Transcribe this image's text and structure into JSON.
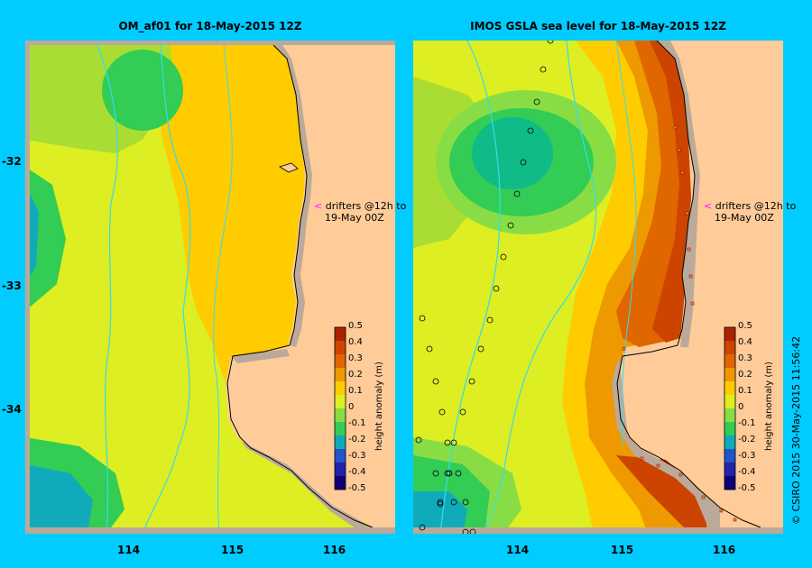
{
  "panels": [
    {
      "title": "OM_af01  for 18-May-2015 12Z"
    },
    {
      "title": "IMOS GSLA sea level  for 18-May-2015 12Z"
    }
  ],
  "y_ticks": [
    "-32",
    "-33",
    "-34"
  ],
  "x_ticks": [
    "114",
    "115",
    "116"
  ],
  "annotation": {
    "line1": "drifters @12h to",
    "line2": "19-May 00Z"
  },
  "colorbar": {
    "label": "height anomaly (m)",
    "ticks": [
      "0.5",
      "0.4",
      "0.3",
      "0.2",
      "0.1",
      "0",
      "-0.1",
      "-0.2",
      "-0.3",
      "-0.4",
      "-0.5"
    ],
    "colors": [
      "#aa2200",
      "#cc4400",
      "#e06600",
      "#ee9900",
      "#ffcc00",
      "#ddee22",
      "#88dd44",
      "#33cc55",
      "#11aabb",
      "#2255cc",
      "#2222aa",
      "#110077"
    ]
  },
  "credit": "© CSIRO 2015   30-May-2015 11:56:42",
  "colors": {
    "land": "#ffcc99",
    "frame": "#00ccff",
    "marker": "#ff33ff"
  }
}
